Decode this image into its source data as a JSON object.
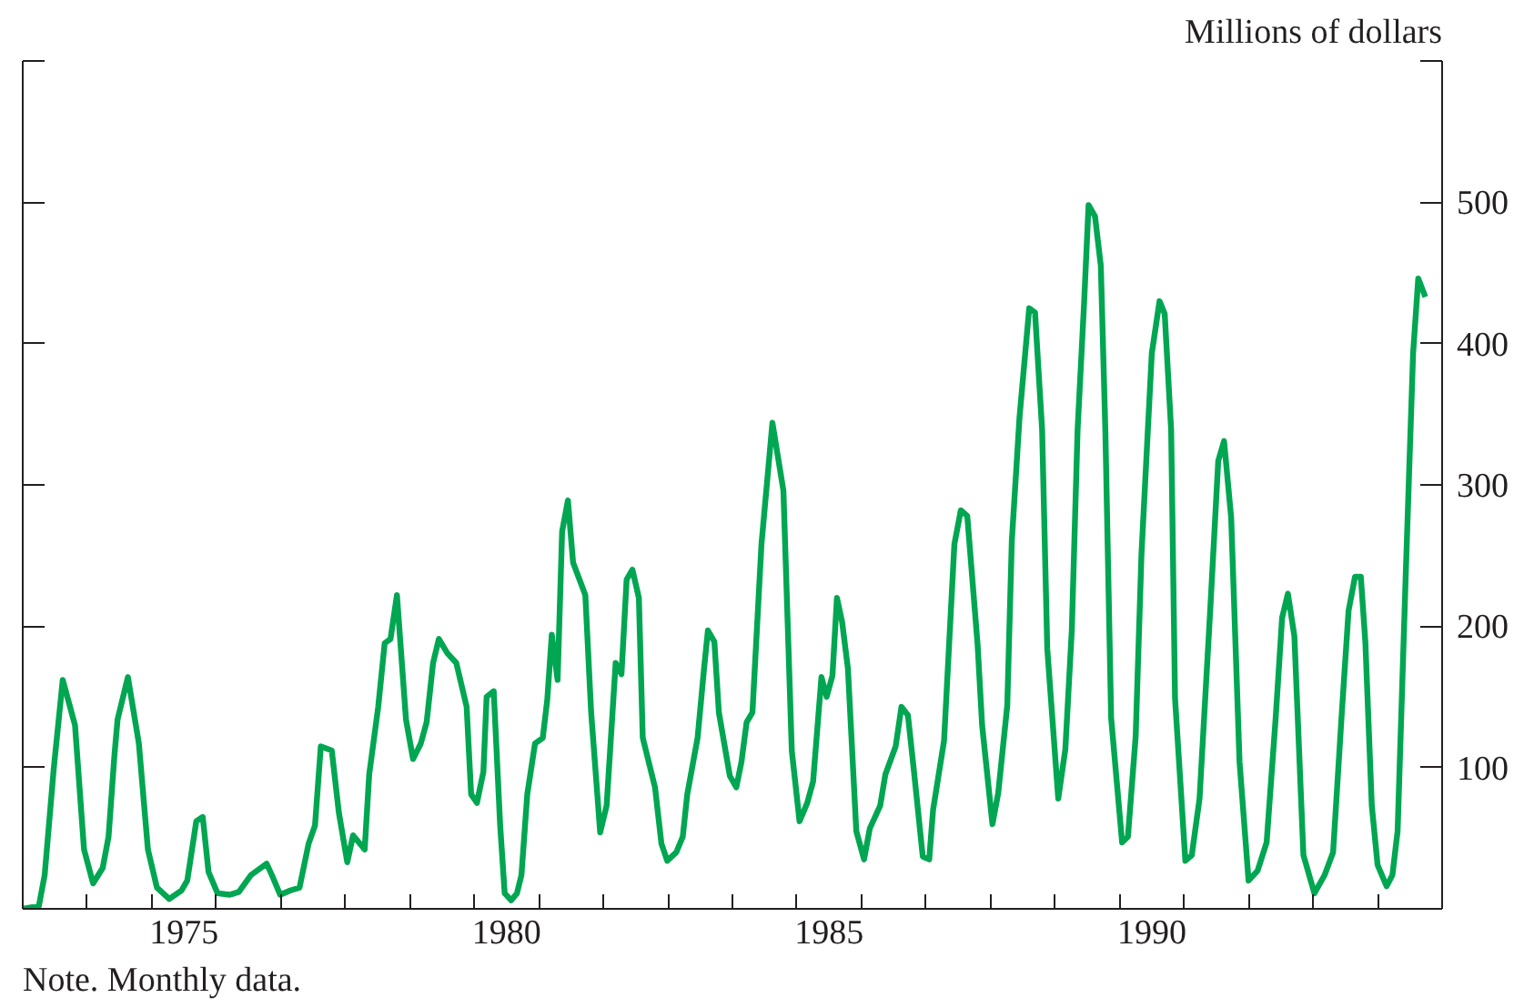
{
  "chart_data": {
    "type": "line",
    "ylabel": "Millions of dollars",
    "annotations": [
      "Note. Monthly data."
    ],
    "xlim": [
      1973,
      1995
    ],
    "ylim": [
      0,
      600
    ],
    "xticks": [
      {
        "value": 1974,
        "label": null
      },
      {
        "value": 1975,
        "label": null
      },
      {
        "value": 1976,
        "label": null
      },
      {
        "value": 1977,
        "label": null
      },
      {
        "value": 1978,
        "label": null
      },
      {
        "value": 1979,
        "label": null
      },
      {
        "value": 1980,
        "label": null
      },
      {
        "value": 1981,
        "label": null
      },
      {
        "value": 1982,
        "label": null
      },
      {
        "value": 1983,
        "label": null
      },
      {
        "value": 1984,
        "label": null
      },
      {
        "value": 1985,
        "label": null
      },
      {
        "value": 1986,
        "label": null
      },
      {
        "value": 1987,
        "label": null
      },
      {
        "value": 1988,
        "label": null
      },
      {
        "value": 1989,
        "label": null
      },
      {
        "value": 1990,
        "label": null
      },
      {
        "value": 1991,
        "label": null
      },
      {
        "value": 1992,
        "label": null
      },
      {
        "value": 1993,
        "label": null
      },
      {
        "value": 1994,
        "label": null
      },
      {
        "value": 1975.5,
        "label": "1975"
      },
      {
        "value": 1980.5,
        "label": "1980"
      },
      {
        "value": 1985.5,
        "label": "1985"
      },
      {
        "value": 1990.5,
        "label": "1990"
      }
    ],
    "yticks": [
      100,
      200,
      300,
      400,
      500,
      {
        "value": 600,
        "label": null
      }
    ],
    "grid": false,
    "line_style": "solid",
    "marker": "none",
    "series": [
      {
        "color": "#00a651",
        "x": [
          1973.01,
          1973.25,
          1973.34,
          1973.48,
          1973.62,
          1973.81,
          1973.95,
          1974.09,
          1974.24,
          1974.33,
          1974.42,
          1974.47,
          1974.63,
          1974.8,
          1974.94,
          1975.08,
          1975.27,
          1975.46,
          1975.55,
          1975.69,
          1975.79,
          1975.88,
          1976.02,
          1976.21,
          1976.35,
          1976.54,
          1976.78,
          1976.87,
          1976.99,
          1977.15,
          1977.29,
          1977.43,
          1977.53,
          1977.62,
          1977.79,
          1977.9,
          1978.03,
          1978.12,
          1978.3,
          1978.37,
          1978.51,
          1978.61,
          1978.7,
          1978.8,
          1978.94,
          1979.05,
          1979.17,
          1979.26,
          1979.36,
          1979.45,
          1979.58,
          1979.72,
          1979.88,
          1979.95,
          1980.04,
          1980.14,
          1980.19,
          1980.3,
          1980.4,
          1980.47,
          1980.57,
          1980.66,
          1980.73,
          1980.82,
          1980.94,
          1981.06,
          1981.13,
          1981.2,
          1981.29,
          1981.36,
          1981.45,
          1981.53,
          1981.72,
          1981.81,
          1981.95,
          1982.05,
          1982.19,
          1982.28,
          1982.36,
          1982.45,
          1982.55,
          1982.61,
          1982.8,
          1982.9,
          1982.99,
          1983.13,
          1983.23,
          1983.3,
          1983.46,
          1983.56,
          1983.62,
          1983.72,
          1983.79,
          1983.96,
          1984.06,
          1984.14,
          1984.22,
          1984.31,
          1984.45,
          1984.62,
          1984.79,
          1984.92,
          1985.04,
          1985.16,
          1985.25,
          1985.38,
          1985.46,
          1985.55,
          1985.62,
          1985.7,
          1985.79,
          1985.92,
          1986.04,
          1986.13,
          1986.29,
          1986.37,
          1986.53,
          1986.62,
          1986.72,
          1986.81,
          1986.95,
          1987.05,
          1987.11,
          1987.28,
          1987.44,
          1987.54,
          1987.64,
          1987.8,
          1987.87,
          1988.03,
          1988.12,
          1988.26,
          1988.33,
          1988.45,
          1988.6,
          1988.69,
          1988.8,
          1988.88,
          1989.05,
          1989.16,
          1989.26,
          1989.35,
          1989.45,
          1989.52,
          1989.62,
          1989.71,
          1989.78,
          1989.87,
          1990.04,
          1990.13,
          1990.25,
          1990.34,
          1990.5,
          1990.62,
          1990.7,
          1990.8,
          1990.86,
          1991.02,
          1991.12,
          1991.24,
          1991.41,
          1991.53,
          1991.62,
          1991.73,
          1991.86,
          1992.0,
          1992.14,
          1992.28,
          1992.42,
          1992.52,
          1992.61,
          1992.71,
          1992.85,
          1993.02,
          1993.18,
          1993.31,
          1993.44,
          1993.55,
          1993.65,
          1993.74,
          1993.81,
          1993.91,
          1994.0,
          1994.14,
          1994.23,
          1994.31,
          1994.44,
          1994.55,
          1994.63,
          1994.74
        ],
        "values": [
          0,
          2,
          24,
          99,
          162,
          130,
          42,
          18,
          29,
          51,
          108,
          134,
          164,
          117,
          42,
          15,
          7,
          13,
          20,
          62,
          65,
          26,
          11,
          10,
          12,
          24,
          32,
          23,
          10,
          13,
          15,
          46,
          59,
          115,
          112,
          68,
          33,
          52,
          42,
          95,
          143,
          188,
          191,
          222,
          134,
          106,
          117,
          132,
          174,
          191,
          181,
          174,
          143,
          81,
          75,
          97,
          150,
          154,
          59,
          11,
          6,
          11,
          24,
          81,
          117,
          121,
          148,
          194,
          162,
          267,
          289,
          245,
          222,
          139,
          54,
          73,
          174,
          166,
          233,
          240,
          220,
          121,
          86,
          46,
          34,
          40,
          51,
          81,
          121,
          170,
          197,
          189,
          139,
          94,
          86,
          104,
          132,
          139,
          258,
          344,
          296,
          112,
          62,
          75,
          90,
          164,
          150,
          165,
          220,
          203,
          170,
          55,
          35,
          57,
          73,
          95,
          115,
          143,
          137,
          99,
          37,
          35,
          70,
          119,
          258,
          282,
          278,
          187,
          130,
          60,
          82,
          144,
          260,
          348,
          425,
          422,
          339,
          184,
          78,
          113,
          197,
          339,
          428,
          498,
          490,
          455,
          339,
          135,
          47,
          51,
          122,
          251,
          393,
          430,
          421,
          339,
          149,
          34,
          38,
          78,
          215,
          317,
          331,
          277,
          104,
          20,
          27,
          47,
          135,
          206,
          223,
          193,
          38,
          11,
          24,
          40,
          135,
          211,
          235,
          235,
          189,
          73,
          31,
          16,
          24,
          55,
          242,
          393,
          446,
          433
        ]
      }
    ]
  }
}
